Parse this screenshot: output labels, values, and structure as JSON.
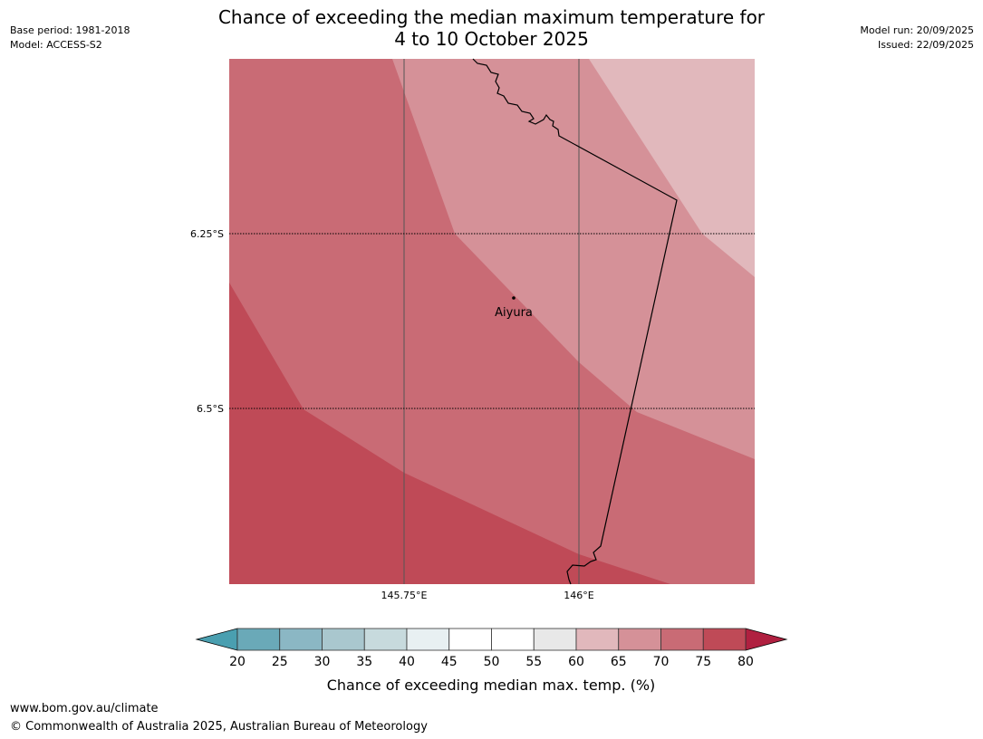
{
  "header": {
    "base_period": "Base period: 1981-2018",
    "model": "Model: ACCESS-S2",
    "model_run": "Model run: 20/09/2025",
    "issued": "Issued: 22/09/2025",
    "title_line1": "Chance of exceeding the median maximum temperature for",
    "title_line2": "4 to 10 October 2025"
  },
  "map": {
    "lat_labels": [
      "6.25°S",
      "6.5°S"
    ],
    "lon_labels": [
      "145.75°E",
      "146°E"
    ],
    "place": {
      "name": "Aiyura"
    },
    "zone_colors": {
      "60-65": "#e1b8bc",
      "65-70": "#d59198",
      "70-75": "#c96b75",
      "75-80": "#bf4a57"
    }
  },
  "colorbar": {
    "ticks": [
      "20",
      "25",
      "30",
      "35",
      "40",
      "45",
      "50",
      "55",
      "60",
      "65",
      "70",
      "75",
      "80"
    ],
    "colors": [
      "#6aa9b8",
      "#8bb7c4",
      "#a9c7ce",
      "#c7dadd",
      "#e8f0f2",
      "#ffffff",
      "#ffffff",
      "#e8e8e8",
      "#e1b8bc",
      "#d59198",
      "#c96b75",
      "#bf4a57"
    ],
    "under_color": "#4a9fb0",
    "over_color": "#b02040",
    "label": "Chance of exceeding median max. temp. (%)"
  },
  "footer": {
    "url": "www.bom.gov.au/climate",
    "copyright": "© Commonwealth of Australia 2025, Australian Bureau of Meteorology"
  }
}
